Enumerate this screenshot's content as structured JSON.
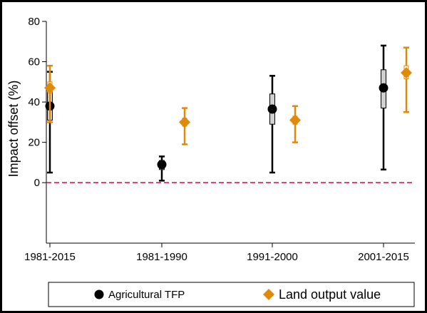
{
  "chart_data": {
    "type": "scatter",
    "title": "",
    "xlabel": "",
    "ylabel": "Impact offset (%)",
    "ylim": [
      -30,
      80
    ],
    "yticks": [
      0,
      20,
      40,
      60,
      80
    ],
    "grid": false,
    "legend_position": "bottom",
    "reference_line": {
      "y": 0,
      "style": "dashed",
      "color": "#c0134a"
    },
    "categories": [
      "1981-2015",
      "1981-1990",
      "1991-2000",
      "2001-2015"
    ],
    "series": [
      {
        "name": "Agricultural TFP",
        "marker": "circle",
        "color": "#000000",
        "box_fill": "#d0d0d0",
        "points": [
          {
            "category": "1981-2015",
            "estimate": 38,
            "box_low": 31,
            "box_high": 45,
            "ci_low": 5,
            "ci_high": 55
          },
          {
            "category": "1981-1990",
            "estimate": 9,
            "box_low": 6.5,
            "box_high": 11,
            "ci_low": 1,
            "ci_high": 13
          },
          {
            "category": "1991-2000",
            "estimate": 36.5,
            "box_low": 29,
            "box_high": 44,
            "ci_low": 5,
            "ci_high": 53
          },
          {
            "category": "2001-2015",
            "estimate": 47,
            "box_low": 37,
            "box_high": 56,
            "ci_low": 6.5,
            "ci_high": 68
          }
        ]
      },
      {
        "name": "Land output value",
        "marker": "diamond",
        "color": "#e08a0b",
        "box_fill": "#ffffff",
        "points": [
          {
            "category": "1981-2015",
            "estimate": 47,
            "box_low": 44.5,
            "box_high": 50,
            "ci_low": 30,
            "ci_high": 58
          },
          {
            "category": "1981-1990",
            "estimate": 30,
            "box_low": 28,
            "box_high": 32,
            "ci_low": 19,
            "ci_high": 37
          },
          {
            "category": "1991-2000",
            "estimate": 31,
            "box_low": 29,
            "box_high": 33,
            "ci_low": 20,
            "ci_high": 38
          },
          {
            "category": "2001-2015",
            "estimate": 54.5,
            "box_low": 51.5,
            "box_high": 58,
            "ci_low": 35,
            "ci_high": 67
          }
        ]
      }
    ]
  }
}
